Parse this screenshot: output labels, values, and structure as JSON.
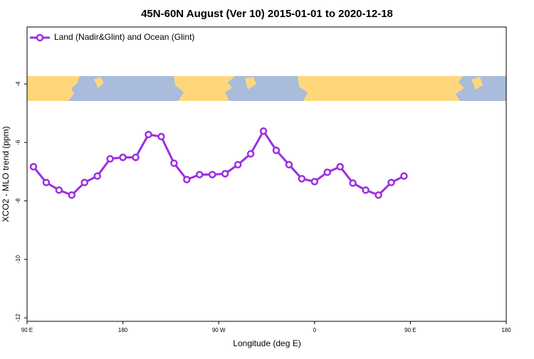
{
  "chart_data": {
    "type": "line",
    "title": "45N-60N August (Ver 10)   2015-01-01 to 2020-12-18",
    "xlabel": "Longitude (deg E)",
    "ylabel": "XCO2 - MLO trend (ppm)",
    "xlim": [
      90,
      540
    ],
    "ylim": [
      -12.12,
      -2.05
    ],
    "xticks": [
      {
        "value": 90,
        "label": "90 E"
      },
      {
        "value": 180,
        "label": "180"
      },
      {
        "value": 270,
        "label": "90 W"
      },
      {
        "value": 360,
        "label": "0"
      },
      {
        "value": 450,
        "label": "90 E"
      },
      {
        "value": 540,
        "label": "180"
      }
    ],
    "yticks": [
      -12,
      -10,
      -8,
      -6,
      -4
    ],
    "legend": "upper left",
    "x": [
      96,
      108,
      120,
      132,
      144,
      156,
      168,
      180,
      192,
      204,
      216,
      228,
      240,
      252,
      264,
      276,
      288,
      300,
      312,
      324,
      336,
      348,
      360,
      372,
      384,
      396,
      408,
      420,
      432,
      444
    ],
    "series": [
      {
        "name": "Land (Nadir&Glint) and Ocean (Glint)",
        "color": "#9b30e0",
        "values": [
          -6.83,
          -7.37,
          -7.63,
          -7.8,
          -7.37,
          -7.15,
          -6.56,
          -6.51,
          -6.51,
          -5.73,
          -5.8,
          -6.71,
          -7.27,
          -7.1,
          -7.1,
          -7.07,
          -6.76,
          -6.39,
          -5.61,
          -6.27,
          -6.76,
          -7.24,
          -7.34,
          -7.02,
          -6.83,
          -7.39,
          -7.63,
          -7.8,
          -7.37,
          -7.15
        ]
      }
    ]
  }
}
